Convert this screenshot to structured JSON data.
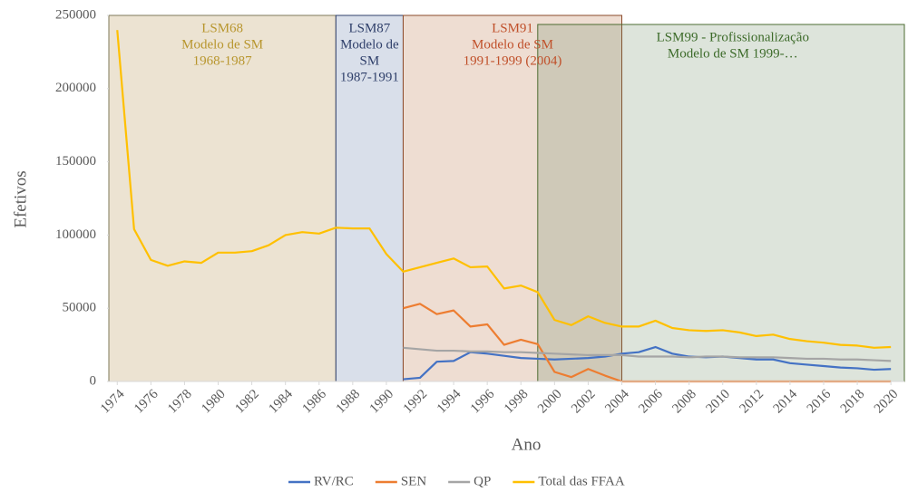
{
  "chart_data": {
    "type": "line",
    "x_label": "Ano",
    "y_label": "Efetivos",
    "x": [
      1974,
      1975,
      1976,
      1977,
      1978,
      1979,
      1980,
      1981,
      1982,
      1983,
      1984,
      1985,
      1986,
      1987,
      1988,
      1989,
      1990,
      1991,
      1992,
      1993,
      1994,
      1995,
      1996,
      1997,
      1998,
      1999,
      2000,
      2001,
      2002,
      2003,
      2004,
      2005,
      2006,
      2007,
      2008,
      2009,
      2010,
      2011,
      2012,
      2013,
      2014,
      2015,
      2016,
      2017,
      2018,
      2019,
      2020
    ],
    "series": [
      {
        "name": "RV/RC",
        "color": "#4472c4",
        "values": [
          null,
          null,
          null,
          null,
          null,
          null,
          null,
          null,
          null,
          null,
          null,
          null,
          null,
          null,
          null,
          null,
          null,
          1500,
          2500,
          13500,
          14000,
          20000,
          19000,
          17500,
          16000,
          15500,
          15000,
          15500,
          16000,
          17000,
          19000,
          20000,
          23500,
          19000,
          17000,
          16500,
          17000,
          16000,
          15000,
          15000,
          12500,
          11500,
          10500,
          9500,
          9000,
          8000,
          8500
        ]
      },
      {
        "name": "SEN",
        "color": "#ed7d31",
        "values": [
          null,
          null,
          null,
          null,
          null,
          null,
          null,
          null,
          null,
          null,
          null,
          null,
          null,
          null,
          null,
          null,
          null,
          50000,
          53000,
          46000,
          48500,
          37500,
          39000,
          25000,
          28500,
          25500,
          6500,
          3000,
          8500,
          4000,
          0,
          0,
          0,
          0,
          0,
          0,
          0,
          0,
          0,
          0,
          0,
          0,
          0,
          0,
          0,
          0,
          0
        ]
      },
      {
        "name": "QP",
        "color": "#a5a5a5",
        "values": [
          null,
          null,
          null,
          null,
          null,
          null,
          null,
          null,
          null,
          null,
          null,
          null,
          null,
          null,
          null,
          null,
          null,
          23000,
          22000,
          21000,
          21000,
          20500,
          20500,
          20000,
          20000,
          19500,
          19000,
          18500,
          18000,
          18000,
          18000,
          17000,
          17000,
          17000,
          16500,
          17000,
          17000,
          16500,
          16500,
          16500,
          16000,
          15500,
          15500,
          15000,
          15000,
          14500,
          14000
        ]
      },
      {
        "name": "Total das FFAA",
        "color": "#ffc000",
        "values": [
          240000,
          104000,
          83000,
          79000,
          82000,
          81000,
          88000,
          88000,
          89000,
          93000,
          100000,
          102000,
          101000,
          105000,
          104500,
          104500,
          87000,
          75000,
          78000,
          81000,
          84000,
          78000,
          78500,
          63500,
          65500,
          61000,
          42000,
          38500,
          44500,
          40000,
          37500,
          37500,
          41500,
          36500,
          35000,
          34500,
          35000,
          33500,
          31000,
          32000,
          29000,
          27500,
          26500,
          25000,
          24500,
          23000,
          23500
        ]
      }
    ],
    "annotations": [
      {
        "lines": [
          "LSM68",
          "Modelo de SM",
          "1968-1987"
        ],
        "start": 1973.5,
        "end": 1987,
        "fill": "#ece3d2",
        "border": "#7f7a5a",
        "text_color": "#b8962e"
      },
      {
        "lines": [
          "LSM87",
          "Modelo de",
          "SM",
          "1987-1991"
        ],
        "start": 1987,
        "end": 1991,
        "fill": "#d9dfea",
        "border": "#2f3f6a",
        "text_color": "#2f3f6a"
      },
      {
        "lines": [
          "LSM91",
          "Modelo de SM",
          "1991-1999 (2004)"
        ],
        "start": 1991,
        "end": 2004,
        "fill": "#eeddd2",
        "border": "#8b4a2a",
        "text_color": "#c0502a"
      },
      {
        "lines": [
          "LSM99 - Profissionalização",
          "Modelo de SM 1999-…"
        ],
        "start": 1999,
        "end": 2020.8,
        "fill": "rgba(100,130,90,0.22)",
        "border": "#4c6b30",
        "text_color": "#3d6b2a"
      }
    ],
    "xlim": [
      1973.5,
      2020.8
    ],
    "xticks": [
      1974,
      1976,
      1978,
      1980,
      1982,
      1984,
      1986,
      1988,
      1990,
      1992,
      1994,
      1996,
      1998,
      2000,
      2002,
      2004,
      2006,
      2008,
      2010,
      2012,
      2014,
      2016,
      2018,
      2020
    ],
    "ylim": [
      0,
      250000
    ],
    "yticks": [
      0,
      50000,
      100000,
      150000,
      200000,
      250000
    ],
    "legend": "bottom"
  }
}
